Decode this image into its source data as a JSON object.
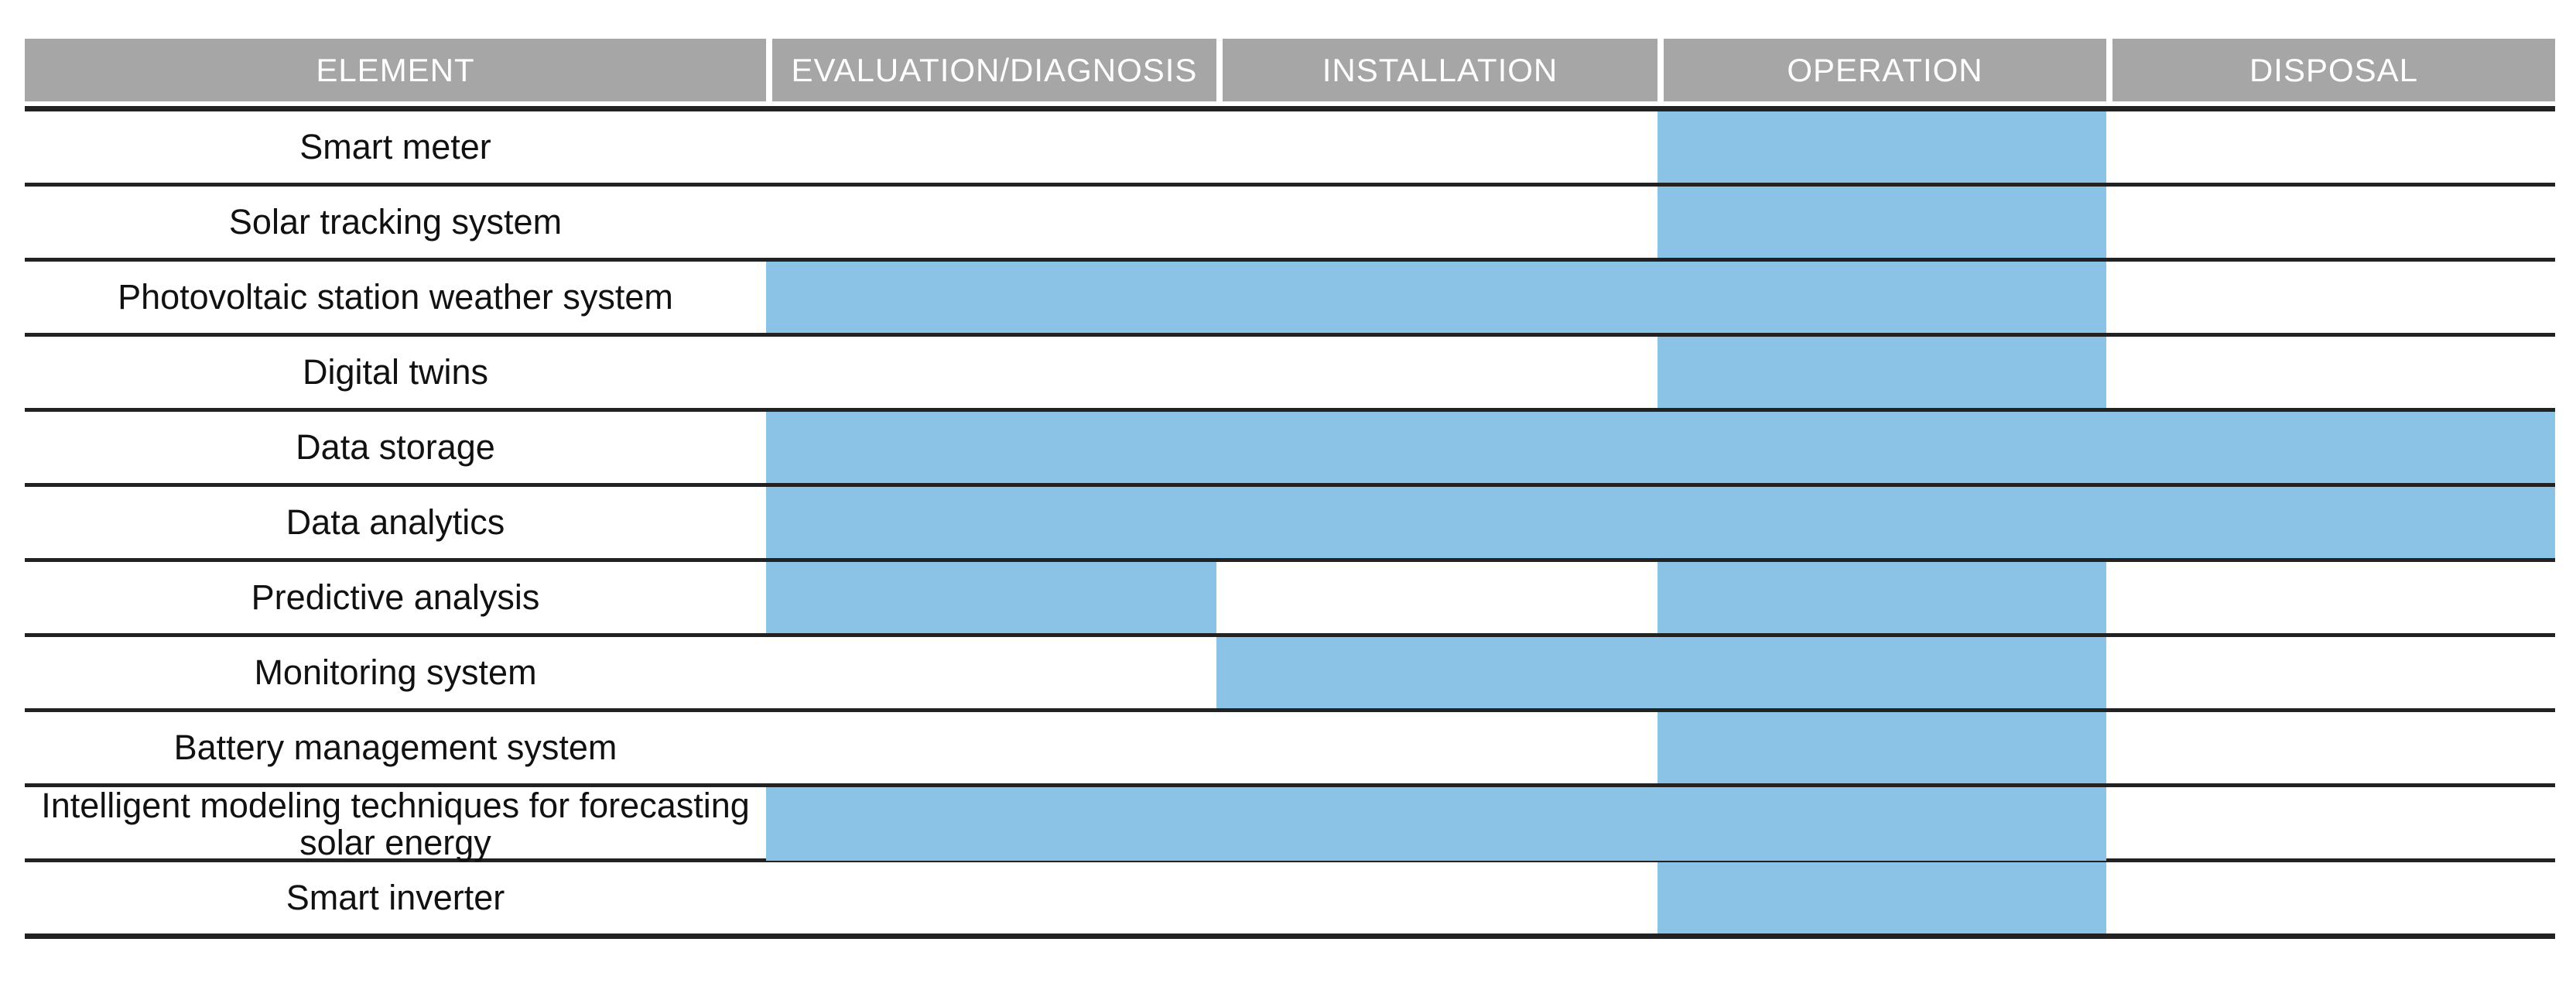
{
  "colors": {
    "header_bg": "#a6a6a6",
    "header_text": "#ffffff",
    "bar_fill": "#8bc3e6",
    "grid_line": "#222222",
    "row_text": "#111111",
    "background": "#ffffff"
  },
  "chart_data": {
    "type": "table",
    "title": "",
    "legend_position": "none",
    "grid": "horizontal-lines",
    "fill_meaning": "blue cell = element active during that lifecycle phase",
    "columns": [
      "ELEMENT",
      "EVALUATION/DIAGNOSIS",
      "INSTALLATION",
      "OPERATION",
      "DISPOSAL"
    ],
    "phase_keys": [
      "evaluation_diagnosis",
      "installation",
      "operation",
      "disposal"
    ],
    "rows": [
      {
        "element": "Smart meter",
        "phases": {
          "evaluation_diagnosis": false,
          "installation": false,
          "operation": true,
          "disposal": false
        }
      },
      {
        "element": "Solar tracking system",
        "phases": {
          "evaluation_diagnosis": false,
          "installation": false,
          "operation": true,
          "disposal": false
        }
      },
      {
        "element": "Photovoltaic station weather system",
        "phases": {
          "evaluation_diagnosis": true,
          "installation": true,
          "operation": true,
          "disposal": false
        }
      },
      {
        "element": "Digital twins",
        "phases": {
          "evaluation_diagnosis": false,
          "installation": false,
          "operation": true,
          "disposal": false
        }
      },
      {
        "element": "Data storage",
        "phases": {
          "evaluation_diagnosis": true,
          "installation": true,
          "operation": true,
          "disposal": true
        }
      },
      {
        "element": "Data analytics",
        "phases": {
          "evaluation_diagnosis": true,
          "installation": true,
          "operation": true,
          "disposal": true
        }
      },
      {
        "element": "Predictive analysis",
        "phases": {
          "evaluation_diagnosis": true,
          "installation": false,
          "operation": true,
          "disposal": false
        }
      },
      {
        "element": "Monitoring system",
        "phases": {
          "evaluation_diagnosis": false,
          "installation": true,
          "operation": true,
          "disposal": false
        }
      },
      {
        "element": "Battery management system",
        "phases": {
          "evaluation_diagnosis": false,
          "installation": false,
          "operation": true,
          "disposal": false
        }
      },
      {
        "element": "Intelligent modeling techniques for forecasting solar energy",
        "phases": {
          "evaluation_diagnosis": true,
          "installation": true,
          "operation": true,
          "disposal": false
        }
      },
      {
        "element": "Smart inverter",
        "phases": {
          "evaluation_diagnosis": false,
          "installation": false,
          "operation": true,
          "disposal": false
        }
      }
    ]
  }
}
